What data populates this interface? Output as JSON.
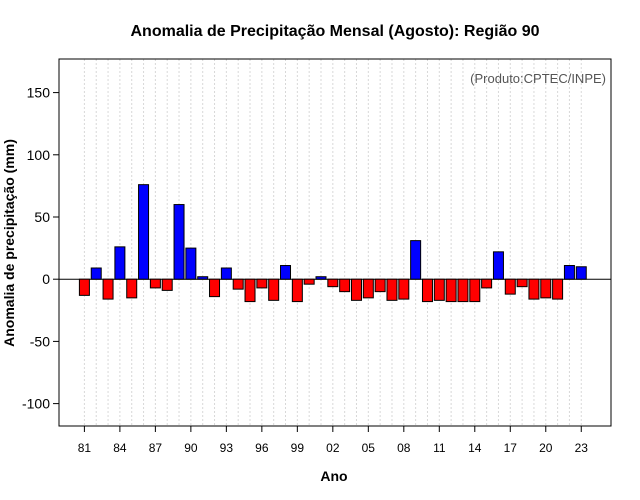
{
  "chart_data": {
    "type": "bar",
    "title": "Anomalia de Precipitação Mensal (Agosto): Região 90",
    "xlabel": "Ano",
    "ylabel": "Anomalia de precipitação (mm)",
    "credit": "(Produto:CPTEC/INPE)",
    "ylim": [
      -118,
      177
    ],
    "yticks": [
      150,
      100,
      50,
      0,
      -50,
      -100
    ],
    "grid": true,
    "colors": {
      "positive": "#0000ff",
      "negative": "#ff0000",
      "border": "#000000"
    },
    "years": [
      1981,
      1982,
      1983,
      1984,
      1985,
      1986,
      1987,
      1988,
      1989,
      1990,
      1991,
      1992,
      1993,
      1994,
      1995,
      1996,
      1997,
      1998,
      1999,
      2000,
      2001,
      2002,
      2003,
      2004,
      2005,
      2006,
      2007,
      2008,
      2009,
      2010,
      2011,
      2012,
      2013,
      2014,
      2015,
      2016,
      2017,
      2018,
      2019,
      2020,
      2021,
      2022,
      2023
    ],
    "values": [
      -13,
      9,
      -16,
      26,
      -15,
      76,
      -7,
      -9,
      60,
      25,
      2,
      -14,
      9,
      -8,
      -18,
      -7,
      -17,
      11,
      -18,
      -4,
      2,
      -6,
      -10,
      -17,
      -15,
      -10,
      -17,
      -16,
      31,
      -18,
      -17,
      -18,
      -18,
      -18,
      -7,
      22,
      -12,
      -6,
      -16,
      -15,
      -16,
      11,
      10
    ],
    "xtick_labels": [
      "81",
      "84",
      "87",
      "90",
      "93",
      "96",
      "99",
      "02",
      "05",
      "08",
      "11",
      "14",
      "17",
      "20",
      "23"
    ]
  }
}
